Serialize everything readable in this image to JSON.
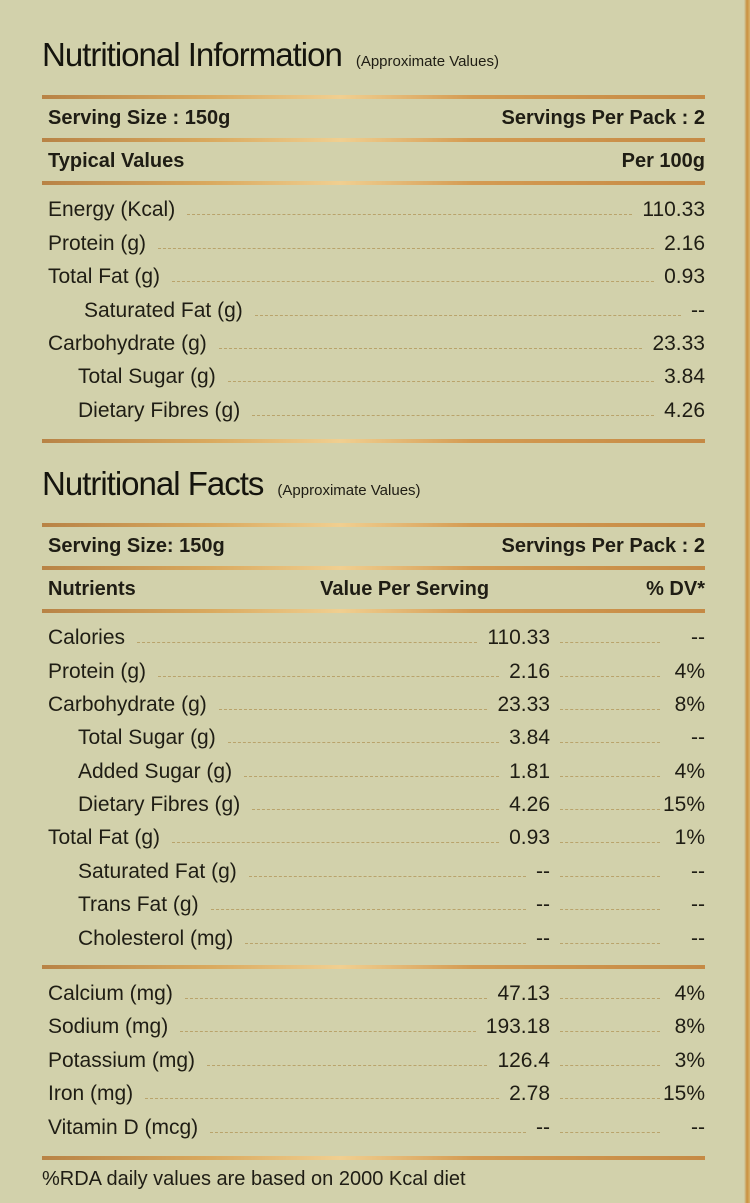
{
  "info": {
    "title": "Nutritional Information",
    "subtitle": "(Approximate Values)",
    "serving_size": "Serving Size : 150g",
    "servings_per_pack": "Servings Per Pack : 2",
    "col_label": "Typical Values",
    "col_value": "Per 100g",
    "rows": [
      {
        "label": "Energy (Kcal)",
        "value": "110.33",
        "indent": 0
      },
      {
        "label": "Protein (g)",
        "value": "2.16",
        "indent": 0
      },
      {
        "label": "Total Fat (g)",
        "value": "0.93",
        "indent": 0
      },
      {
        "label": "Saturated Fat (g)",
        "value": "--",
        "indent": 1
      },
      {
        "label": "Carbohydrate (g)",
        "value": "23.33",
        "indent": 0
      },
      {
        "label": "Total Sugar (g)",
        "value": "3.84",
        "indent": 2
      },
      {
        "label": "Dietary Fibres (g)",
        "value": "4.26",
        "indent": 2
      }
    ]
  },
  "facts": {
    "title": "Nutritional Facts",
    "subtitle": "(Approximate Values)",
    "serving_size": "Serving Size: 150g",
    "servings_per_pack": "Servings Per Pack : 2",
    "col_nutrients": "Nutrients",
    "col_value": "Value Per Serving",
    "col_dv": "% DV*",
    "rows": [
      {
        "label": "Calories",
        "value": "110.33",
        "dv": "--",
        "indent": 0
      },
      {
        "label": "Protein (g)",
        "value": "2.16",
        "dv": "4%",
        "indent": 0
      },
      {
        "label": "Carbohydrate (g)",
        "value": "23.33",
        "dv": "8%",
        "indent": 0
      },
      {
        "label": "Total Sugar (g)",
        "value": "3.84",
        "dv": "--",
        "indent": 2
      },
      {
        "label": "Added Sugar (g)",
        "value": "1.81",
        "dv": "4%",
        "indent": 2
      },
      {
        "label": "Dietary Fibres (g)",
        "value": "4.26",
        "dv": "15%",
        "indent": 2
      },
      {
        "label": "Total Fat (g)",
        "value": "0.93",
        "dv": "1%",
        "indent": 0
      },
      {
        "label": "Saturated Fat (g)",
        "value": "--",
        "dv": "--",
        "indent": 2
      },
      {
        "label": "Trans Fat (g)",
        "value": "--",
        "dv": "--",
        "indent": 2
      },
      {
        "label": "Cholesterol (mg)",
        "value": "--",
        "dv": "--",
        "indent": 2
      }
    ],
    "minerals": [
      {
        "label": "Calcium (mg)",
        "value": "47.13",
        "dv": "4%",
        "indent": 0
      },
      {
        "label": "Sodium (mg)",
        "value": "193.18",
        "dv": "8%",
        "indent": 0
      },
      {
        "label": "Potassium (mg)",
        "value": "126.4",
        "dv": "3%",
        "indent": 0
      },
      {
        "label": "Iron (mg)",
        "value": "2.78",
        "dv": "15%",
        "indent": 0
      },
      {
        "label": "Vitamin D (mcg)",
        "value": "--",
        "dv": "--",
        "indent": 0
      }
    ],
    "footnote": "%RDA daily values are based on 2000 Kcal diet"
  },
  "colors": {
    "background": "#d2d1ab",
    "gold": "#d4a055",
    "text": "#1f1d14"
  }
}
